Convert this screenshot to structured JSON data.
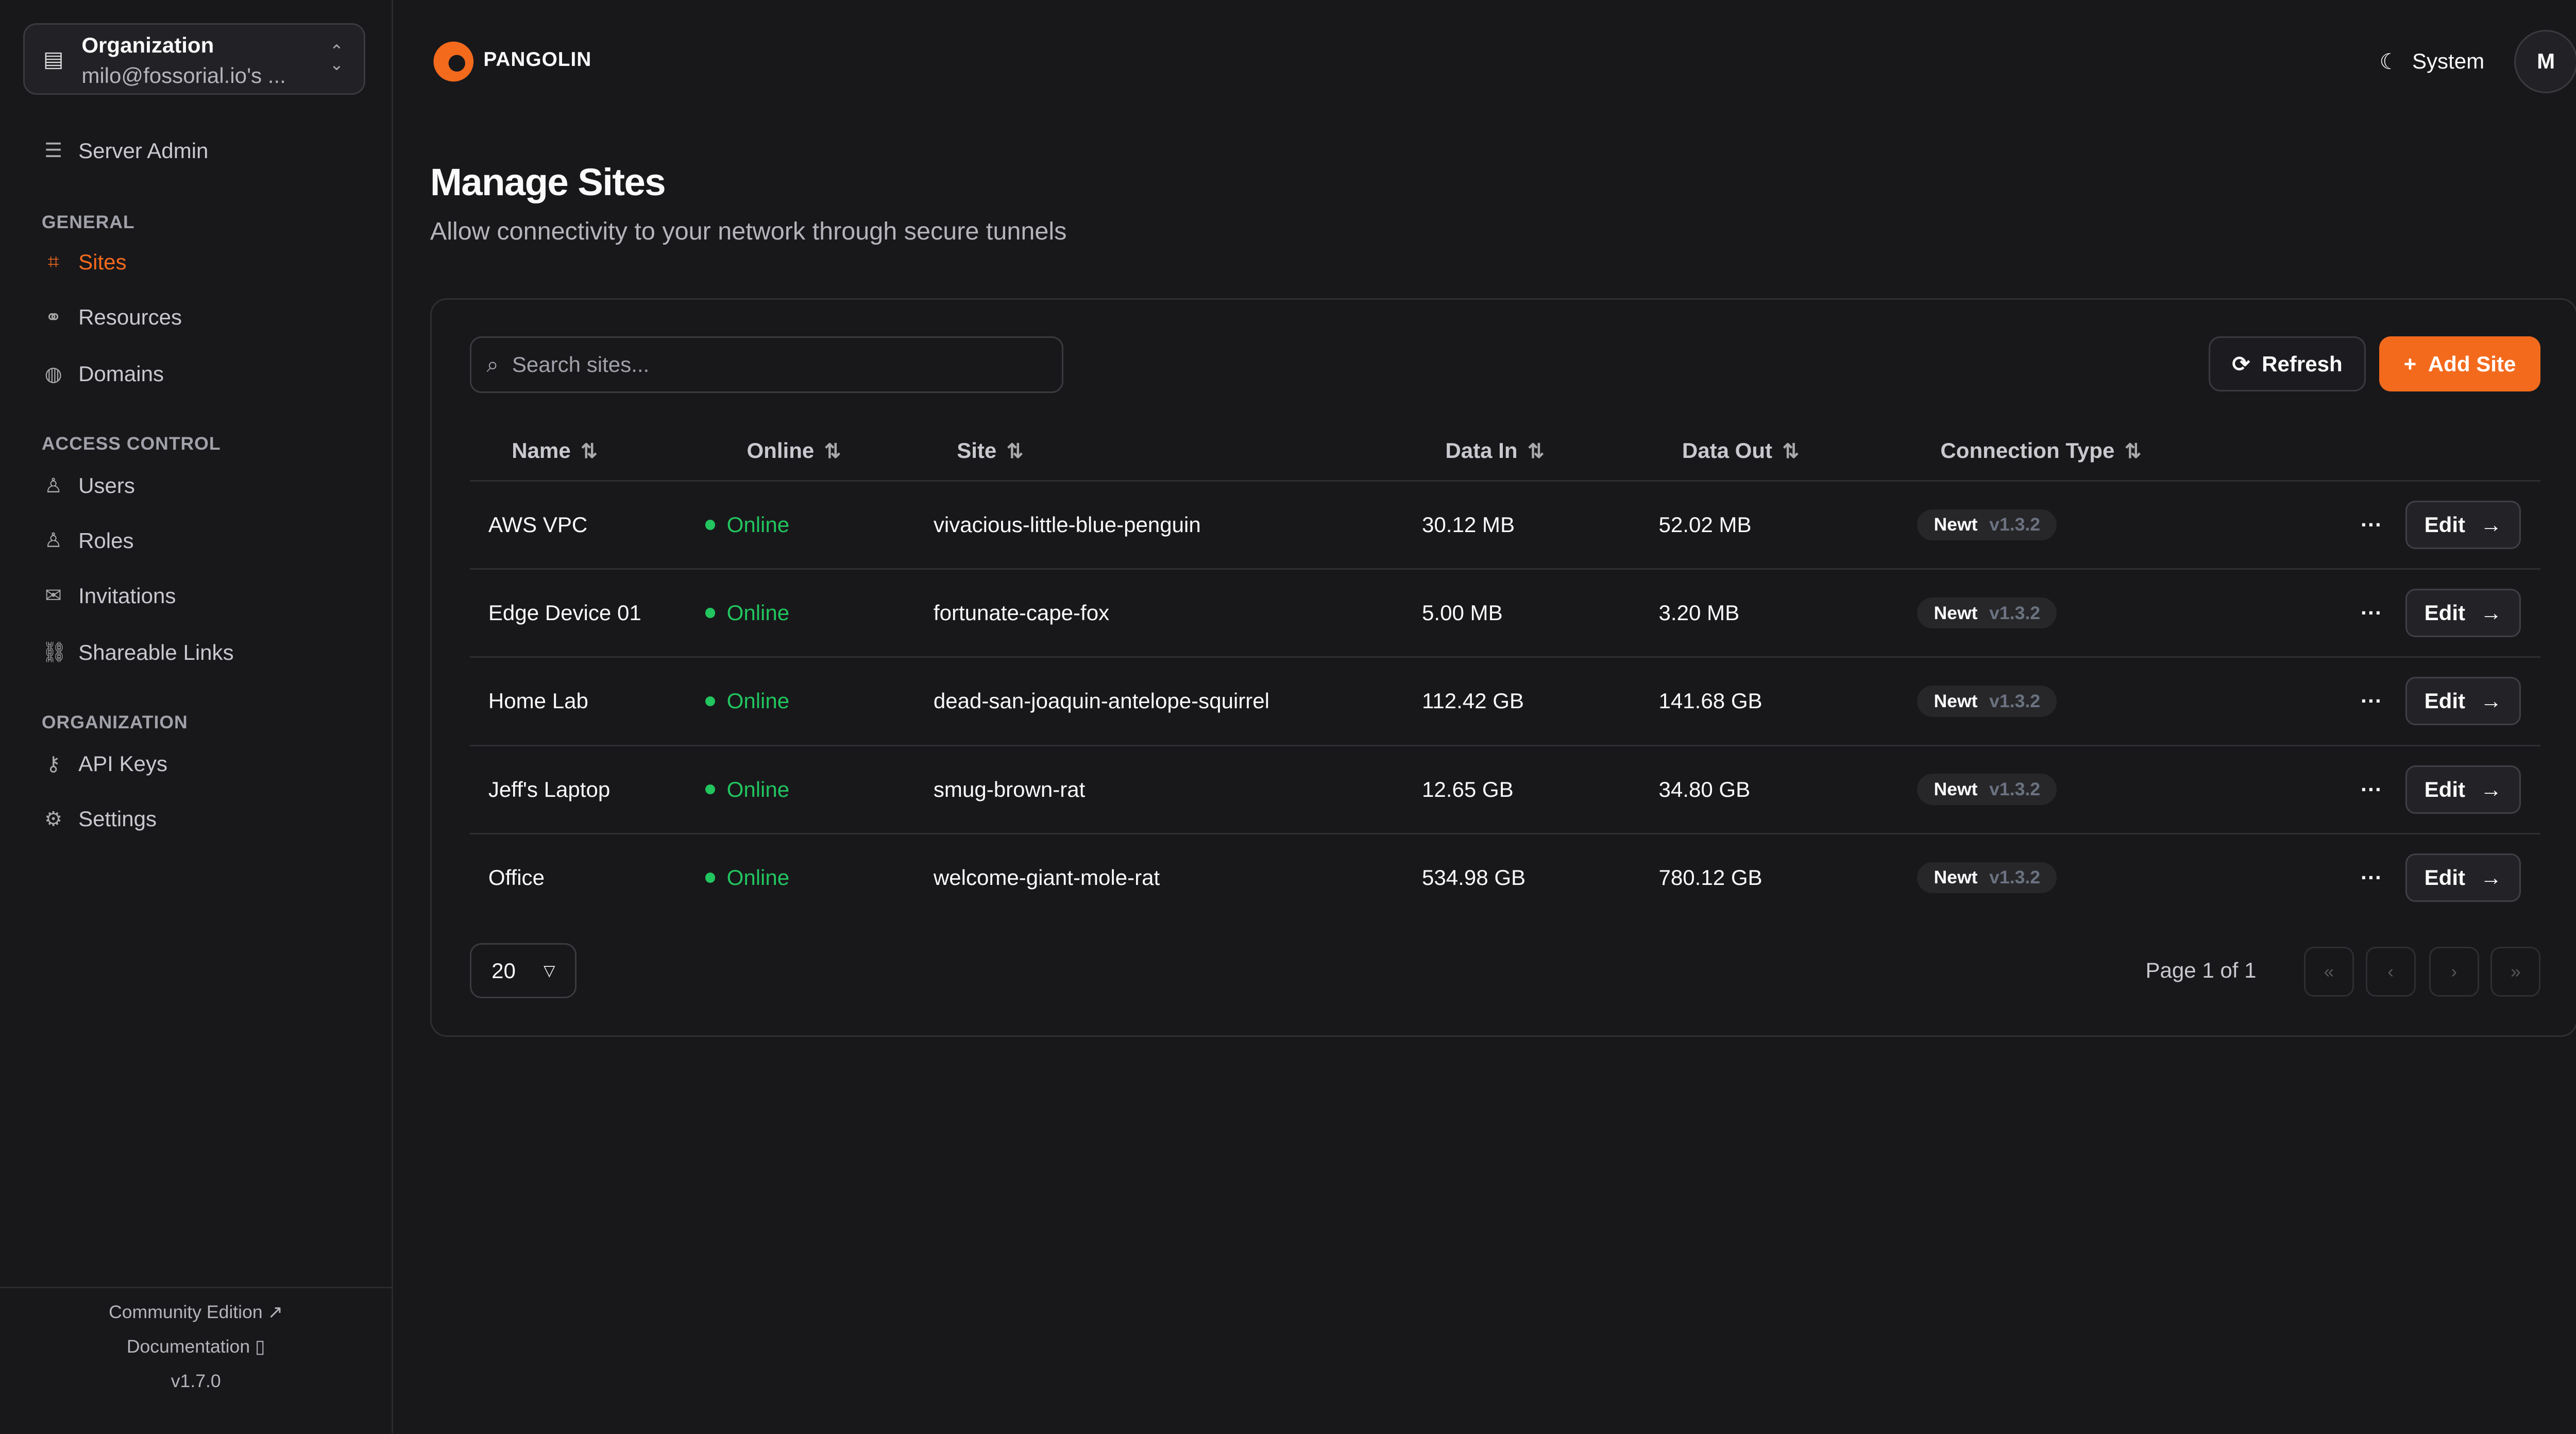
{
  "sidebar": {
    "org_label": "Organization",
    "org_name": "milo@fossorial.io's ...",
    "server_admin": "Server Admin",
    "sections": {
      "general": "GENERAL",
      "access": "ACCESS CONTROL",
      "organization": "ORGANIZATION"
    },
    "items": [
      {
        "label": "Sites",
        "icon": "sites-icon"
      },
      {
        "label": "Resources",
        "icon": "resources-icon"
      },
      {
        "label": "Domains",
        "icon": "globe-icon"
      },
      {
        "label": "Users",
        "icon": "user-icon"
      },
      {
        "label": "Roles",
        "icon": "users-icon"
      },
      {
        "label": "Invitations",
        "icon": "mail-icon"
      },
      {
        "label": "Shareable Links",
        "icon": "link-icon"
      },
      {
        "label": "API Keys",
        "icon": "key-icon"
      },
      {
        "label": "Settings",
        "icon": "gear-icon"
      }
    ],
    "footer": {
      "community": "Community Edition",
      "docs": "Documentation",
      "version": "v1.7.0"
    }
  },
  "header": {
    "brand": "PANGOLIN",
    "theme": "System",
    "avatar": "M"
  },
  "page": {
    "title": "Manage Sites",
    "subtitle": "Allow connectivity to your network through secure tunnels"
  },
  "toolbar": {
    "search_placeholder": "Search sites...",
    "refresh": "Refresh",
    "add": "Add Site"
  },
  "table": {
    "columns": [
      "Name",
      "Online",
      "Site",
      "Data In",
      "Data Out",
      "Connection Type"
    ],
    "rows": [
      {
        "name": "AWS VPC",
        "online": "Online",
        "site": "vivacious-little-blue-penguin",
        "in": "30.12 MB",
        "out": "52.02 MB",
        "type": "Newt",
        "version": "v1.3.2"
      },
      {
        "name": "Edge Device 01",
        "online": "Online",
        "site": "fortunate-cape-fox",
        "in": "5.00 MB",
        "out": "3.20 MB",
        "type": "Newt",
        "version": "v1.3.2"
      },
      {
        "name": "Home Lab",
        "online": "Online",
        "site": "dead-san-joaquin-antelope-squirrel",
        "in": "112.42 GB",
        "out": "141.68 GB",
        "type": "Newt",
        "version": "v1.3.2"
      },
      {
        "name": "Jeff's Laptop",
        "online": "Online",
        "site": "smug-brown-rat",
        "in": "12.65 GB",
        "out": "34.80 GB",
        "type": "Newt",
        "version": "v1.3.2"
      },
      {
        "name": "Office",
        "online": "Online",
        "site": "welcome-giant-mole-rat",
        "in": "534.98 GB",
        "out": "780.12 GB",
        "type": "Newt",
        "version": "v1.3.2"
      }
    ],
    "edit_label": "Edit"
  },
  "pagination": {
    "page_size": "20",
    "page_info": "Page 1 of 1"
  },
  "colors": {
    "accent": "#f36a1d",
    "online": "#22c55e",
    "background": "#18181b"
  }
}
